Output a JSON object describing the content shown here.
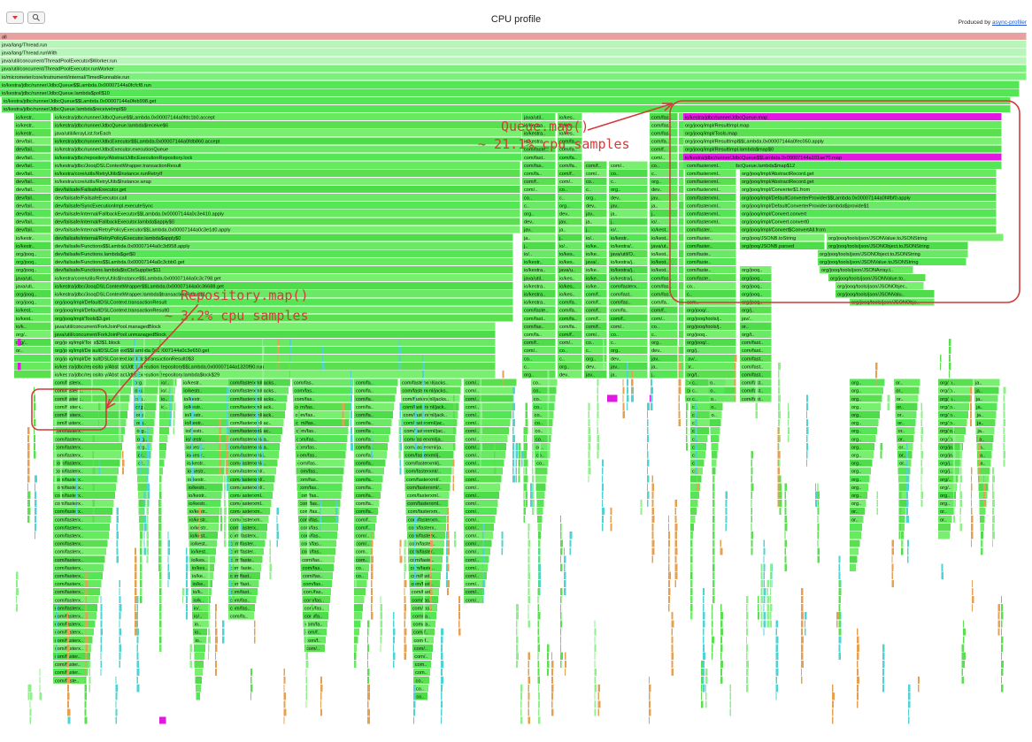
{
  "header": {
    "title": "CPU profile",
    "produced_by": "Produced by",
    "produced_link": "async-profiler",
    "buttons": [
      {
        "name": "reverse-button",
        "icon": "chevron-down-icon"
      },
      {
        "name": "search-button",
        "icon": "search-icon"
      }
    ]
  },
  "colors": {
    "root": "#e8a1a1",
    "thread_frames": "#b8f5b8",
    "java_green": "#55e655",
    "java_green_light": "#7bf07b",
    "highlight_magenta": "#e018e0",
    "cyan": "#4ed3d3",
    "orange": "#e6a050",
    "annotation_red": "#d43a3a"
  },
  "flame_rows": [
    [
      {
        "label": "all",
        "color": "root"
      }
    ],
    [
      {
        "label": "java/lang/Thread.run",
        "color": "thread_frames"
      }
    ],
    [
      {
        "label": "java/lang/Thread.runWith",
        "color": "thread_frames"
      }
    ],
    [
      {
        "label": "java/util/concurrent/ThreadPoolExecutor$Worker.run",
        "color": "thread_frames"
      }
    ],
    [
      {
        "label": "java/util/concurrent/ThreadPoolExecutor.runWorker",
        "color": "java_green_light"
      }
    ],
    [
      {
        "label": "io/micrometer/core/instrument/internal/TimedRunnable.run",
        "color": "java_green_light"
      }
    ],
    [
      {
        "label": "io/kestra/jdbc/runner/JdbcQueue$$Lambda.0x00007144a0fcfcf8.run",
        "color": "java_green"
      }
    ],
    [
      {
        "label": "io/kestra/jdbc/runner/JdbcQueue.lambda$poll$10",
        "color": "java_green"
      }
    ],
    [
      {
        "label": "io/kestra/jdbc/runner/JdbcQueue$$Lambda.0x00007144a0feb998.get",
        "color": "java_green"
      }
    ],
    [
      {
        "label": "io/kestra/jdbc/runner/JdbcQueue.lambda$receiveImpl$9",
        "color": "java_green"
      }
    ]
  ],
  "left_frames": [
    "io/kestra/jdbc/runner/JdbcQueue$$Lambda.0x00007144a0fdc1b0.accept",
    "io/kestra/jdbc/runner/JdbcQueue.lambda$receive$6",
    "java/util/ArrayList.forEach",
    "io/kestra/jdbc/runner/JdbcExecutor$$Lambda.0x00007144a0fdb860.accept",
    "io/kestra/jdbc/runner/JdbcExecutor.executionQueue",
    "io/kestra/jdbc/repository/AbstractJdbcExecutionRepository.lock",
    "io/kestra/jdbc/JooqDSLContextWrapper.transactionResult",
    "io/kestra/core/utils/RetryUtils$Instance.runRetryIf",
    "io/kestra/core/utils/RetryUtils$Instance.wrap",
    "dev/failsafe/FailsafeExecutor.get",
    "dev/failsafe/FailsafeExecutor.call",
    "dev/failsafe/SyncExecutionImpl.executeSync",
    "dev/failsafe/internal/FallbackExecutor$$Lambda.0x00007144a0c3e410.apply",
    "dev/failsafe/internal/FallbackExecutor.lambda$apply$0",
    "dev/failsafe/internal/RetryPolicyExecutor$$Lambda.0x00007144a0c3e1d0.apply",
    "dev/failsafe/internal/RetryPolicyExecutor.lambda$apply$0",
    "dev/failsafe/Functions$$Lambda.0x00007144a0c3d958.apply",
    "dev/failsafe/Functions.lambda$get$0",
    "dev/failsafe/Functions$$Lambda.0x00007144a0c3cbb0.get",
    "dev/failsafe/Functions.lambda$toCtxSupplier$11",
    "io/kestra/core/utils/RetryUtils$Instance$$Lambda.0x00007144a0c3c798.get",
    "io/kestra/jdbc/JooqDSLContextWrapper$$Lambda.0x00007144a0c36688.get",
    "io/kestra/jdbc/JooqDSLContextWrapper.lambda$transactionResult$1",
    "org/jooq/impl/DefaultDSLContext.transactionResult",
    "org/jooq/impl/DefaultDSLContext.transactionResult0",
    "org/jooq/impl/Tools$3.get",
    "java/util/concurrent/ForkJoinPool.managedBlock",
    "java/util/concurrent/ForkJoinPool.unmanagedBlock",
    "org/jooq/impl/Tools$3$1.block",
    "org/jooq/impl/DefaultDSLContext$$Lambda.0x00007144a0c3e650.get",
    "org/jooq/impl/DefaultDSLContext.lambda$transactionResult0$3",
    "io/kestra/jdbc/repository/AbstractJdbcExecutionRepository$$Lambda.0x00007144a1320f90.run",
    "io/kestra/jdbc/repository/AbstractJdbcExecutionRepository.lambda$lock$29"
  ],
  "left_short_labels": [
    "io/kestr..",
    "io/kestr..",
    "io/kestr..",
    "dev/fail..",
    "dev/fail..",
    "dev/fail..",
    "dev/fail..",
    "dev/fail..",
    "dev/fail..",
    "dev/fail..",
    "dev/fail..",
    "dev/fail..",
    "dev/fail..",
    "dev/fail..",
    "dev/fail..",
    "io/kestr..",
    "io/kestr..",
    "org/jooq..",
    "org/jooq..",
    "org/jooq..",
    "java/uti..",
    "java/uti..",
    "org/jooq..",
    "org/jooq..",
    "io/kest..",
    "io/kest..",
    "io/k..",
    "org/..",
    "org/..",
    "or.."
  ],
  "middle_frames": [
    "io/kestra/jdbc/runner/JdbcExecutor$$Lambda.0x00007144a1320d50.apply",
    "io/kestra/jdbc/runner/JdbcExecutor.lambda$executionQueue$13",
    "io/kestra/core/runners/Exe..",
    "io/kestra/core/services/PluginDefaultService..",
    "io/kestra/core/serializers/YamlFlowParser..",
    "com/fasterxml/jackson/databind/ObjectMapp..",
    "com/fasterxml/jackson/databind/ObjectMapp..",
    "com/fasterxml/jackson/dat..",
    "io/kestra/jdbc/runner/JdbcExecutor.transform"
  ],
  "middle_short_labels": [
    "java/util/Op..",
    "io/kestra/jd..",
    "io/kestra/jd..",
    "io/kestra/jd..",
    "com/fasterx..",
    "com/fast..",
    "com/fas..",
    "com/fa..",
    "com/f..",
    "com/..",
    "co..",
    "c..",
    "org..",
    "dev..",
    "jav..",
    "ja..",
    "j..",
    "io/..",
    "io/kestr..",
    "io/kestra/.."
  ],
  "right_frames": [
    "io/kestra/jdbc/runner/JdbcQueue.map",
    "org/jooq/impl/ResultImpl.map",
    "org/jooq/impl/Tools.map",
    "org/jooq/impl/ResultImpl$$Lambda.0x00007144a0fec050.apply",
    "org/jooq/impl/ResultImpl.lambda$map$0",
    "io/kestra/jdbc/runner/JdbcQueue$$Lambda.0x00007144a101ae70.map",
    "io/kestra/jdbc/runner/JdbcQueue.lambda$map$12",
    "org/jooq/impl/AbstractRecord.get",
    "org/jooq/impl/AbstractRecord.get",
    "org/jooq/impl/Converter$1.from",
    "org/jooq/impl/DefaultConverterProvider$$Lambda.0x00007144a0f4fbf0.apply",
    "org/jooq/impl/DefaultConverterProvider.lambda$provide$1",
    "org/jooq/impl/Convert.convert",
    "org/jooq/impl/Convert.convert0",
    "org/jooq/impl/Convert$ConvertAll.from",
    "org/jooq/JSONB.toString",
    "org/jooq/JSONB.parsed"
  ],
  "right_json_frames": [
    "org/jooq/tools/json/JSONValue.toJSONString",
    "org/jooq/tools/json/JSONObject.toJSONString",
    "org/jooq/tools/json/JSONObject.toJSONString",
    "org/jooq/tools/json/JSONValue.toJSONString",
    "org/jooq/tools/json/JSONArray.toJ..",
    "org/jooq/tools/json/JSONValue.to..",
    "org/jooq/tools/json/JSONObject.t..",
    "org/jooq/tools/json/JSONValu..",
    "org/jooq/tools/json/JSONObject.."
  ],
  "right_short_labels": [
    "com/fasterxml..",
    "com/fasterxml..",
    "com/fasterxml..",
    "com/fasterxml..",
    "com/fasterxml..",
    "com/fasterxml..",
    "com/fasterxml..",
    "com/fasterxml..",
    "com/faster..",
    "com/faster..",
    "com/faster..",
    "com/faste..",
    "com/faste..",
    "com/faste..",
    "com/faste..",
    "co..",
    "c..",
    "com..",
    "org/jooq/..",
    "org/jooq/tools/js..",
    "org/jooq/tools/json/J..",
    "org/jooq..",
    "org/jooq/..",
    "org/j..",
    "jav/..",
    "or..",
    "org/t.."
  ],
  "annotations": [
    {
      "text": "Queue.map()"
    },
    {
      "text": "~ 21.1% cpu samples"
    },
    {
      "text": "Repository.map()"
    },
    {
      "text": "~ 3.2% cpu samples"
    }
  ]
}
